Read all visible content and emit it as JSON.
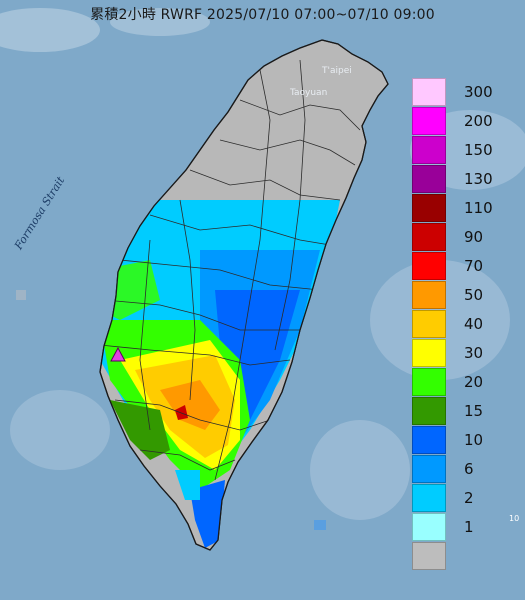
{
  "title": "累積2小時 RWRF 2025/07/10 07:00~07/10 09:00",
  "strait_label": "Formosa Strait",
  "cities": {
    "taipei": "T'aipei",
    "taoyuan": "Taoyuan"
  },
  "corner_mark": "10",
  "legend": {
    "items": [
      {
        "label": "300",
        "color": "#ffc8ff"
      },
      {
        "label": "200",
        "color": "#ff00ff"
      },
      {
        "label": "150",
        "color": "#cc00cc"
      },
      {
        "label": "130",
        "color": "#990099"
      },
      {
        "label": "110",
        "color": "#990000"
      },
      {
        "label": "90",
        "color": "#cc0000"
      },
      {
        "label": "70",
        "color": "#ff0000"
      },
      {
        "label": "50",
        "color": "#ff9900"
      },
      {
        "label": "40",
        "color": "#ffcc00"
      },
      {
        "label": "30",
        "color": "#ffff00"
      },
      {
        "label": "20",
        "color": "#33ff00"
      },
      {
        "label": "15",
        "color": "#339900"
      },
      {
        "label": "10",
        "color": "#0066ff"
      },
      {
        "label": "6",
        "color": "#0099ff"
      },
      {
        "label": "2",
        "color": "#00ccff"
      },
      {
        "label": "1",
        "color": "#99ffff"
      },
      {
        "label": "",
        "color": "#bdbdbd"
      }
    ]
  },
  "colors": {
    "sea": "#7fa9c9",
    "land": "#b8b8b8",
    "marker": "#e040e0"
  },
  "icons": [
    "rain-gauge-triangle-marker"
  ]
}
